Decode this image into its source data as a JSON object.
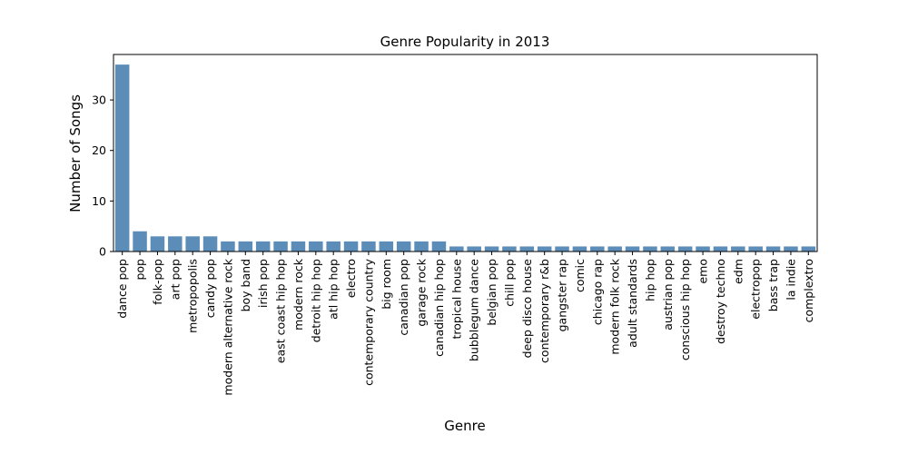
{
  "chart_data": {
    "type": "bar",
    "title": "Genre Popularity in 2013",
    "xlabel": "Genre",
    "ylabel": "Number of Songs",
    "ylim": [
      0,
      39
    ],
    "yticks": [
      0,
      10,
      20,
      30
    ],
    "grid": false,
    "bar_color": "#5b8db8",
    "categories": [
      "dance pop",
      "pop",
      "folk-pop",
      "art pop",
      "metropopolis",
      "candy pop",
      "modern alternative rock",
      "boy band",
      "irish pop",
      "east coast hip hop",
      "modern rock",
      "detroit hip hop",
      "atl hip hop",
      "electro",
      "contemporary country",
      "big room",
      "canadian pop",
      "garage rock",
      "canadian hip hop",
      "tropical house",
      "bubblegum dance",
      "belgian pop",
      "chill pop",
      "deep disco house",
      "contemporary r&b",
      "gangster rap",
      "comic",
      "chicago rap",
      "modern folk rock",
      "adult standards",
      "hip hop",
      "austrian pop",
      "conscious hip hop",
      "emo",
      "destroy techno",
      "edm",
      "electropop",
      "bass trap",
      "la indie",
      "complextro"
    ],
    "values": [
      37,
      4,
      3,
      3,
      3,
      3,
      2,
      2,
      2,
      2,
      2,
      2,
      2,
      2,
      2,
      2,
      2,
      2,
      2,
      1,
      1,
      1,
      1,
      1,
      1,
      1,
      1,
      1,
      1,
      1,
      1,
      1,
      1,
      1,
      1,
      1,
      1,
      1,
      1,
      1
    ]
  }
}
